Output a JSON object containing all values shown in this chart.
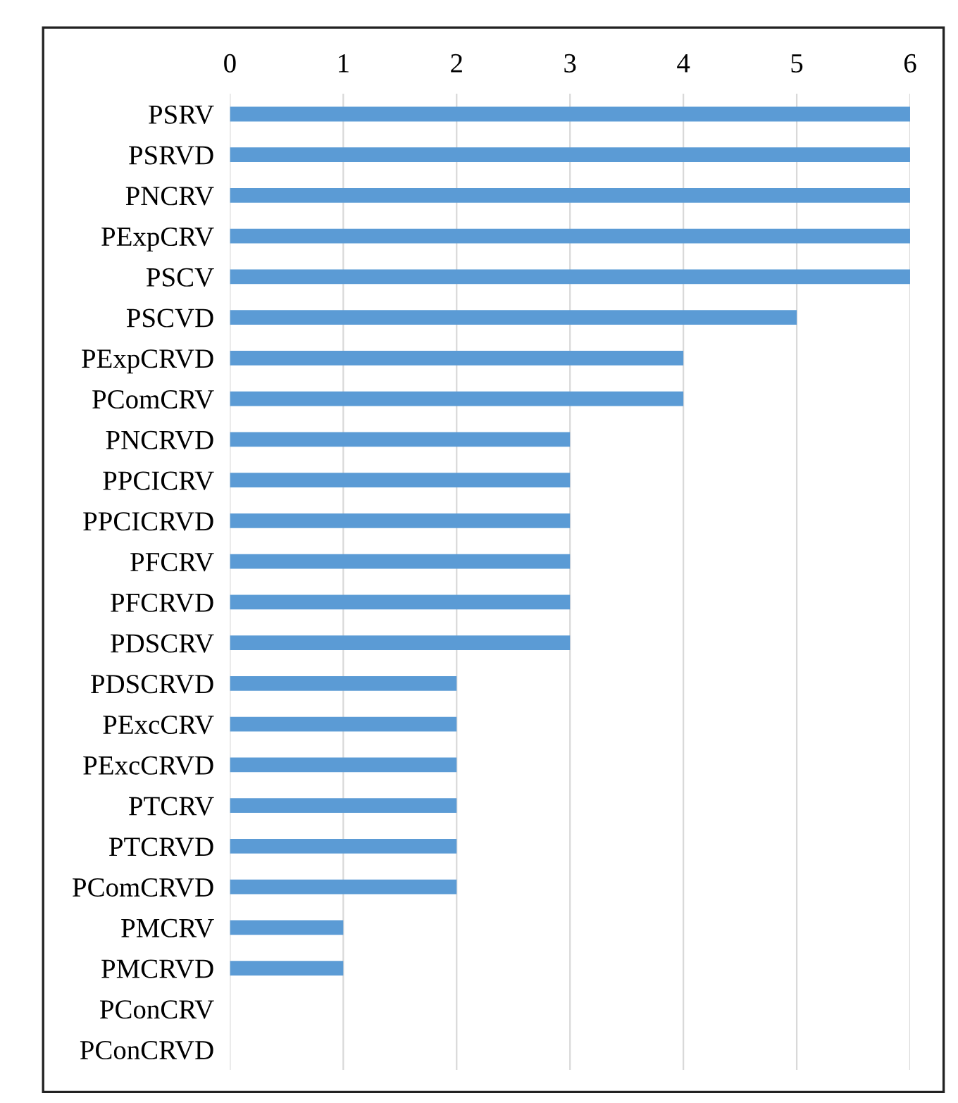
{
  "chart_data": {
    "type": "bar",
    "orientation": "horizontal",
    "categories": [
      "PSRV",
      "PSRVD",
      "PNCRV",
      "PExpCRV",
      "PSCV",
      "PSCVD",
      "PExpCRVD",
      "PComCRV",
      "PNCRVD",
      "PPCICRV",
      "PPCICRVD",
      "PFCRV",
      "PFCRVD",
      "PDSCRV",
      "PDSCRVD",
      "PExcCRV",
      "PExcCRVD",
      "PTCRV",
      "PTCRVD",
      "PComCRVD",
      "PMCRV",
      "PMCRVD",
      "PConCRV",
      "PConCRVD"
    ],
    "values": [
      6,
      6,
      6,
      6,
      6,
      5,
      4,
      4,
      3,
      3,
      3,
      3,
      3,
      3,
      2,
      2,
      2,
      2,
      2,
      2,
      1,
      1,
      0,
      0
    ],
    "color": "#5b9bd5",
    "xlim": [
      0,
      6
    ],
    "xticks": [
      0,
      1,
      2,
      3,
      4,
      5,
      6
    ],
    "grid": "x",
    "legend": false
  }
}
